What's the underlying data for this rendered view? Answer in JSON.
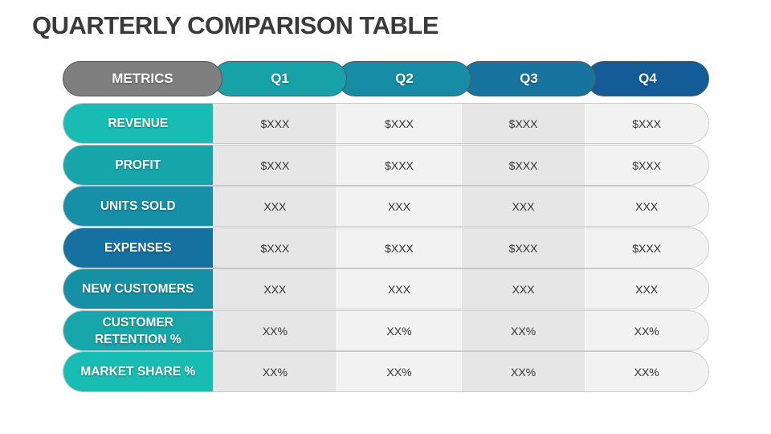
{
  "header": {
    "title": "QUARTERLY COMPARISON TABLE"
  },
  "table": {
    "headers": [
      "METRICS",
      "Q1",
      "Q2",
      "Q3",
      "Q4"
    ],
    "rows": [
      [
        "REVENUE",
        "$XXX",
        "$XXX",
        "$XXX",
        "$XXX"
      ],
      [
        "PROFIT",
        "$XXX",
        "$XXX",
        "$XXX",
        "$XXX"
      ],
      [
        "UNITS SOLD",
        "XXX",
        "XXX",
        "XXX",
        "XXX"
      ],
      [
        "EXPENSES",
        "$XXX",
        "$XXX",
        "$XXX",
        "$XXX"
      ],
      [
        "NEW CUSTOMERS",
        "XXX",
        "XXX",
        "XXX",
        "XXX"
      ],
      [
        "CUSTOMER RETENTION %",
        "XX%",
        "XX%",
        "XX%",
        "XX%"
      ],
      [
        "MARKET SHARE %",
        "XX%",
        "XX%",
        "XX%",
        "XX%"
      ]
    ]
  }
}
